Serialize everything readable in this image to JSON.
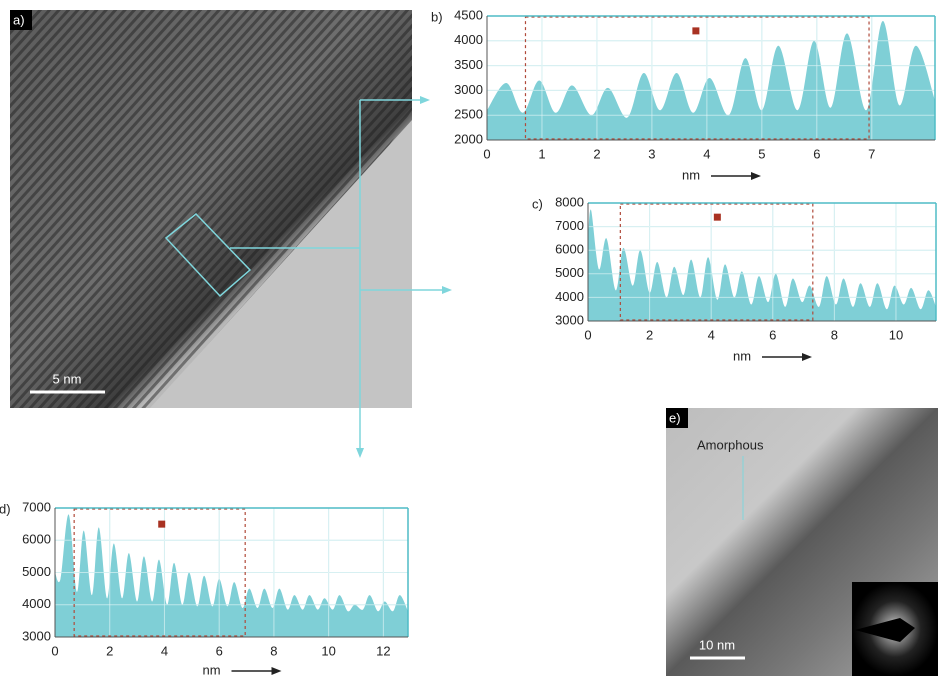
{
  "images": [
    {
      "label": "a)",
      "scale_bar": "5 nm"
    },
    {
      "label": "e)",
      "annotation": "Amorphous",
      "scale_bar": "10 nm"
    }
  ],
  "chart_data": [
    {
      "type": "area",
      "label": "b)",
      "xlabel": "nm",
      "color": "#7fcfd6",
      "x": [
        0,
        0.35,
        0.65,
        0.95,
        1.25,
        1.55,
        1.9,
        2.2,
        2.55,
        2.85,
        3.15,
        3.45,
        3.75,
        4.05,
        4.4,
        4.7,
        5.0,
        5.3,
        5.65,
        5.95,
        6.25,
        6.55,
        6.9,
        7.2,
        7.5,
        7.8,
        8.15
      ],
      "values": [
        2600,
        3150,
        2550,
        3200,
        2550,
        3100,
        2500,
        3050,
        2450,
        3350,
        2600,
        3350,
        2550,
        3250,
        2500,
        3650,
        2600,
        3900,
        2600,
        4000,
        2650,
        4150,
        2600,
        4400,
        2700,
        3900,
        2800
      ],
      "xlim": [
        0,
        8.15
      ],
      "ylim": [
        2000,
        4500
      ],
      "xticks": [
        0,
        1,
        2,
        3,
        4,
        5,
        6,
        7
      ],
      "yticks": [
        2000,
        2500,
        3000,
        3500,
        4000,
        4500
      ],
      "selection_x": [
        0.7,
        6.95
      ],
      "marker_x": 3.8,
      "marker_y": 4200,
      "grid": true
    },
    {
      "type": "area",
      "label": "c)",
      "xlabel": "nm",
      "color": "#7fcfd6",
      "x": [
        0,
        0.1,
        0.35,
        0.6,
        0.9,
        1.15,
        1.45,
        1.7,
        2.0,
        2.25,
        2.55,
        2.8,
        3.1,
        3.35,
        3.65,
        3.9,
        4.2,
        4.45,
        4.75,
        5.0,
        5.3,
        5.55,
        5.85,
        6.1,
        6.4,
        6.65,
        6.95,
        7.2,
        7.5,
        7.75,
        8.05,
        8.3,
        8.6,
        8.85,
        9.15,
        9.4,
        9.7,
        9.95,
        10.25,
        10.5,
        10.8,
        11.05,
        11.3
      ],
      "values": [
        6500,
        7700,
        5200,
        6500,
        4300,
        6100,
        4500,
        6000,
        4200,
        5500,
        4000,
        5300,
        4100,
        5600,
        4000,
        5700,
        3900,
        5400,
        4000,
        5100,
        3700,
        4900,
        3800,
        5000,
        3600,
        4800,
        3800,
        4500,
        3600,
        4900,
        3700,
        4800,
        3600,
        4600,
        3600,
        4600,
        3500,
        4500,
        3700,
        4400,
        3500,
        4300,
        3600
      ],
      "xlim": [
        0,
        11.3
      ],
      "ylim": [
        3000,
        8000
      ],
      "xticks": [
        0,
        2,
        4,
        6,
        8,
        10
      ],
      "yticks": [
        3000,
        4000,
        5000,
        6000,
        7000,
        8000
      ],
      "selection_x": [
        1.05,
        7.3
      ],
      "marker_x": 4.2,
      "marker_y": 7400,
      "grid": true
    },
    {
      "type": "area",
      "label": "d)",
      "xlabel": "nm",
      "color": "#7fcfd6",
      "x": [
        0,
        0.2,
        0.5,
        0.8,
        1.05,
        1.35,
        1.6,
        1.9,
        2.15,
        2.45,
        2.7,
        3.0,
        3.25,
        3.55,
        3.8,
        4.1,
        4.35,
        4.65,
        4.9,
        5.2,
        5.45,
        5.75,
        6.0,
        6.3,
        6.55,
        6.85,
        7.1,
        7.4,
        7.65,
        7.95,
        8.2,
        8.5,
        8.75,
        9.05,
        9.3,
        9.6,
        9.85,
        10.15,
        10.4,
        10.7,
        10.95,
        11.25,
        11.5,
        11.8,
        12.05,
        12.35,
        12.6,
        12.9
      ],
      "values": [
        5000,
        4800,
        6800,
        4400,
        6300,
        4300,
        6400,
        4200,
        5900,
        4200,
        5600,
        4100,
        5500,
        4100,
        5400,
        4000,
        5300,
        4000,
        5000,
        3950,
        4900,
        3950,
        4800,
        3950,
        4700,
        3900,
        4500,
        3900,
        4500,
        3900,
        4500,
        3850,
        4300,
        3850,
        4300,
        3850,
        4200,
        3850,
        4300,
        3800,
        4000,
        3850,
        4300,
        3800,
        4100,
        3800,
        4300,
        3800
      ],
      "xlim": [
        0,
        12.9
      ],
      "ylim": [
        3000,
        7000
      ],
      "xticks": [
        0,
        2,
        4,
        6,
        8,
        10,
        12
      ],
      "yticks": [
        3000,
        4000,
        5000,
        6000,
        7000
      ],
      "selection_x": [
        0.7,
        6.95
      ],
      "marker_x": 3.9,
      "marker_y": 6500,
      "grid": true
    }
  ]
}
